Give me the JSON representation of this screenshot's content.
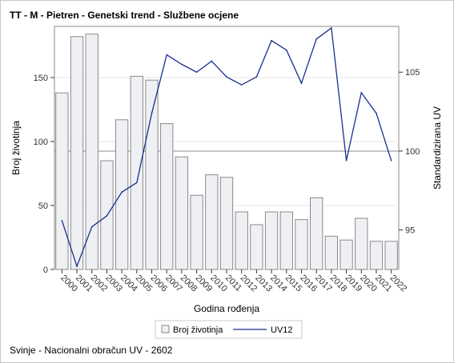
{
  "chart_data": {
    "type": "bar",
    "title": "TT - M - Pietren - Genetski trend - Službene ocjene",
    "xlabel": "Godina rođenja",
    "ylabel": "Broj životinja",
    "y2label": "Standardizirana UV",
    "categories": [
      "2000",
      "2001",
      "2002",
      "2003",
      "2004",
      "2005",
      "2006",
      "2007",
      "2008",
      "2009",
      "2010",
      "2011",
      "2012",
      "2013",
      "2014",
      "2015",
      "2016",
      "2017",
      "2018",
      "2019",
      "2020",
      "2021",
      "2022"
    ],
    "ylim": [
      0,
      190
    ],
    "y2lim": [
      92.5,
      107.9
    ],
    "yticks": [
      0,
      50,
      100,
      150
    ],
    "y2ticks": [
      95,
      100,
      105
    ],
    "reference_line_y2": 100,
    "series": [
      {
        "name": "Broj životinja",
        "type": "bar",
        "axis": "left",
        "color": "#eef0f4",
        "edge_color": "#8a8a8a",
        "values": [
          138,
          182,
          184,
          85,
          117,
          151,
          148,
          114,
          88,
          58,
          74,
          72,
          45,
          35,
          45,
          45,
          39,
          56,
          26,
          23,
          40,
          22,
          22
        ]
      },
      {
        "name": "UV12",
        "type": "line",
        "axis": "right",
        "color": "#1a2f8f",
        "values": [
          95.6,
          92.7,
          95.2,
          95.9,
          97.4,
          98.0,
          102.4,
          106.1,
          105.5,
          105.0,
          105.7,
          104.7,
          104.2,
          104.7,
          107.0,
          106.4,
          104.3,
          107.1,
          107.8,
          99.4,
          103.7,
          102.4,
          99.4
        ]
      }
    ],
    "legend": {
      "position": "bottom-center",
      "entries": [
        "Broj životinja",
        "UV12"
      ]
    },
    "grid": true,
    "footnote": "Svinje - Nacionalni obračun UV - 2602"
  }
}
